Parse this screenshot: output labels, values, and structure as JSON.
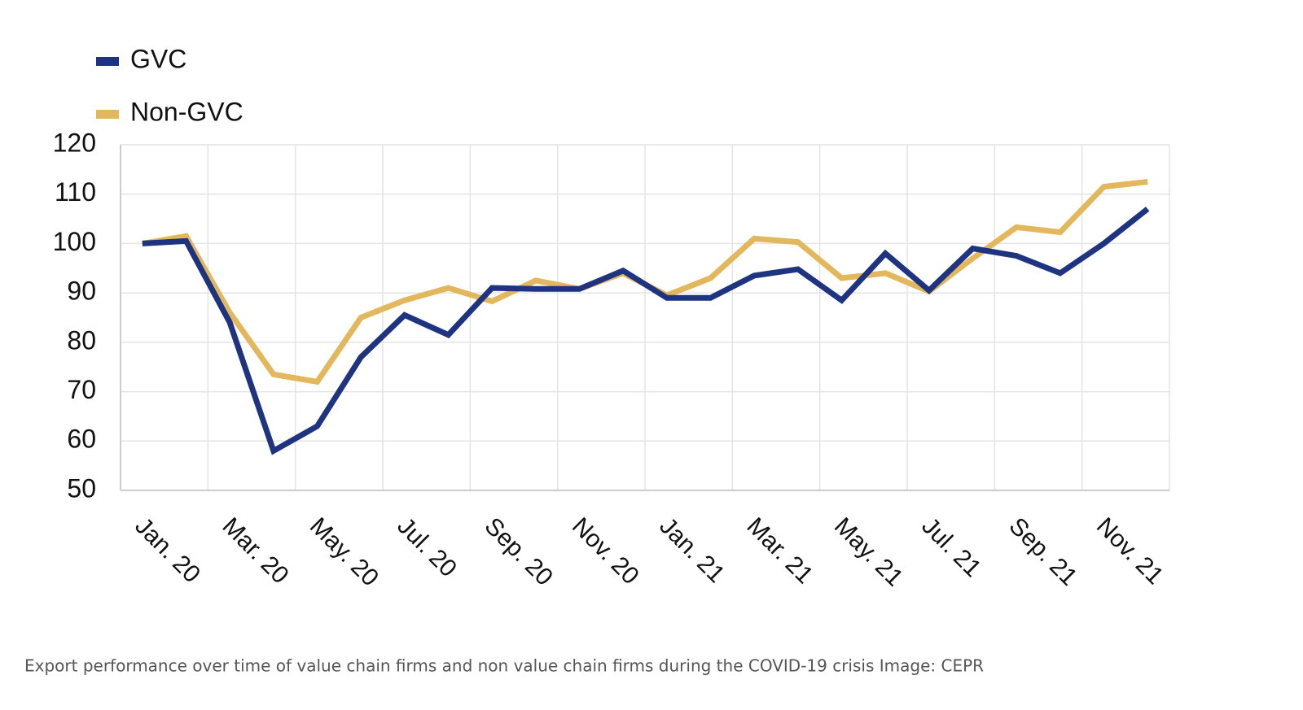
{
  "chart_data": {
    "type": "line",
    "categories": [
      "Jan. 20",
      null,
      "Mar. 20",
      null,
      "May. 20",
      null,
      "Jul. 20",
      null,
      "Sep. 20",
      null,
      "Nov. 20",
      null,
      "Jan. 21",
      null,
      "Mar. 21",
      null,
      "May. 21",
      null,
      "Jul. 21",
      null,
      "Sep. 21",
      null,
      "Nov. 21",
      null
    ],
    "series": [
      {
        "name": "GVC",
        "color": "#1f3480",
        "values": [
          100,
          100.5,
          84,
          58,
          63,
          77,
          85.5,
          81.5,
          91,
          90.8,
          90.8,
          94.5,
          89,
          89,
          93.5,
          94.8,
          88.5,
          98,
          90.5,
          99,
          97.5,
          94,
          100,
          107
        ]
      },
      {
        "name": "Non-GVC",
        "color": "#e3b75c",
        "values": [
          100,
          101.5,
          86,
          73.5,
          72,
          85,
          88.5,
          91,
          88.3,
          92.5,
          90.8,
          94,
          89.5,
          93,
          101,
          100.3,
          93,
          94,
          90.3,
          97,
          103.3,
          102.3,
          111.5,
          112.5
        ]
      }
    ],
    "ylim": [
      50,
      120
    ],
    "yticks": [
      50,
      60,
      70,
      80,
      90,
      100,
      110,
      120
    ],
    "grid": true,
    "legend": "top-left",
    "caption": "Export performance over time of value chain firms and non value chain firms during the COVID-19 crisis Image: CEPR"
  }
}
